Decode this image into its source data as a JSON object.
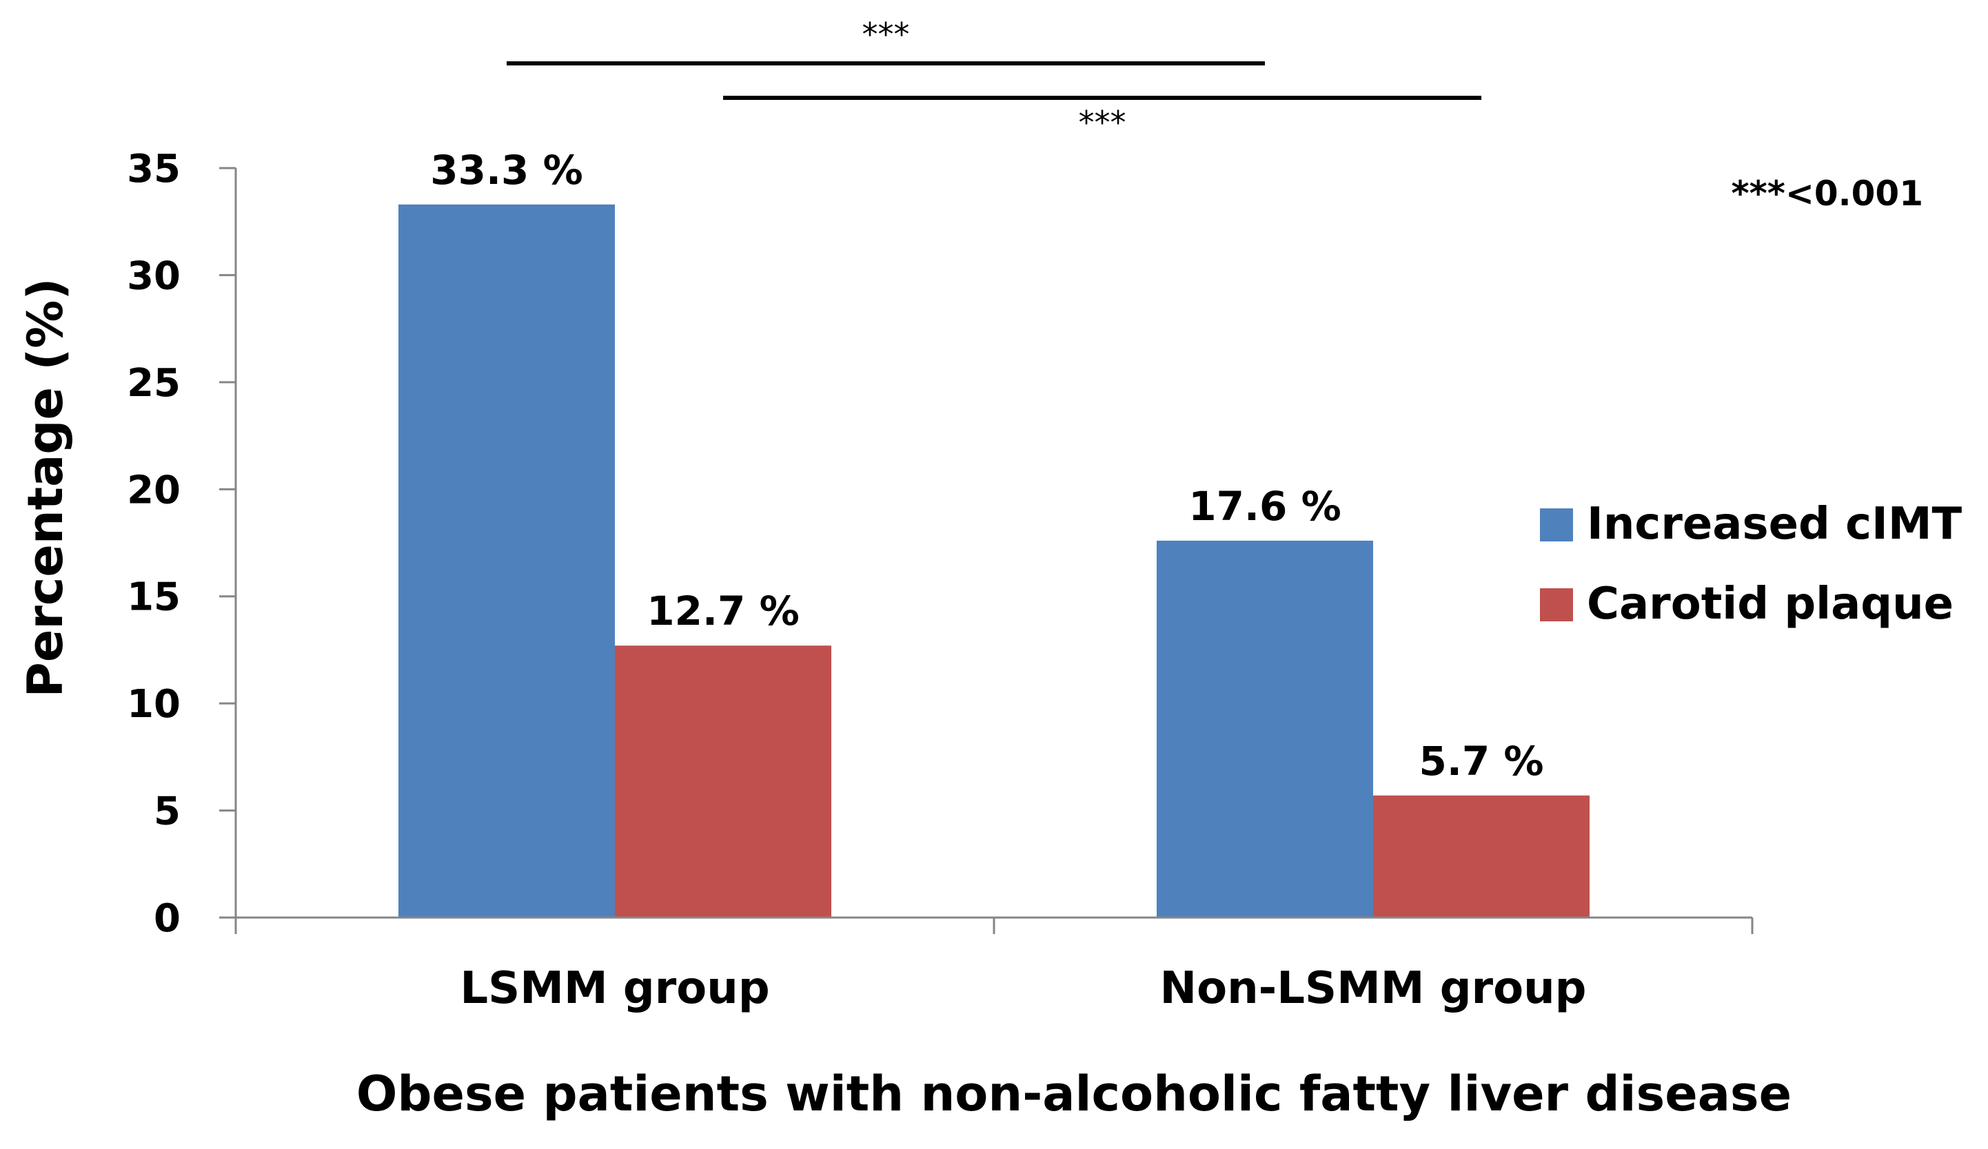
{
  "chart_data": {
    "type": "bar",
    "title": "",
    "xlabel": "Obese patients with non-alcoholic fatty liver disease",
    "ylabel": "Percentage (%)",
    "ylim": [
      0,
      35
    ],
    "yticks": [
      0,
      5,
      10,
      15,
      20,
      25,
      30,
      35
    ],
    "grid": false,
    "legend_position": "right",
    "categories": [
      "LSMM group",
      "Non-LSMM group"
    ],
    "series": [
      {
        "name": "Increased cIMT",
        "color": "#4F81BD",
        "values": [
          33.3,
          17.6
        ],
        "labels": [
          "33.3 %",
          "17.6 %"
        ]
      },
      {
        "name": "Carotid plaque",
        "color": "#C0504D",
        "values": [
          12.7,
          5.7
        ],
        "labels": [
          "12.7 %",
          "5.7 %"
        ]
      }
    ],
    "significance": [
      {
        "label": "***",
        "from": "Increased cIMT, LSMM group",
        "to": "Increased cIMT, Non-LSMM group"
      },
      {
        "label": "***",
        "from": "Carotid plaque, LSMM group",
        "to": "Carotid plaque, Non-LSMM group"
      }
    ],
    "significance_note": "***<0.001"
  }
}
